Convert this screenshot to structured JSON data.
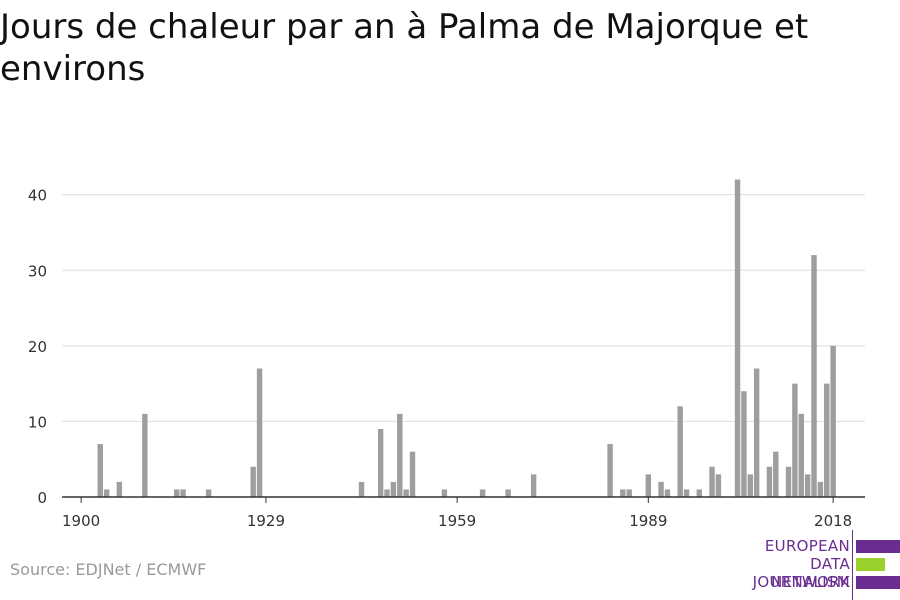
{
  "title": "Jours de chaleur par an à Palma de Majorque et environs",
  "source": "Source: EDJNet / ECMWF",
  "logo": {
    "lines": [
      "EUROPEAN",
      "DATA JOURNALISM",
      "NETWORK"
    ],
    "purple": "#6a2c91",
    "green": "#9bd12d"
  },
  "colors": {
    "bar": "#9e9e9e",
    "grid": "#dddddd",
    "axis": "#333333"
  },
  "chart_data": {
    "type": "bar",
    "title": "Jours de chaleur par an à Palma de Majorque et environs",
    "xlabel": "",
    "ylabel": "",
    "xlim": [
      1897,
      2023
    ],
    "ylim": [
      0,
      43
    ],
    "x_ticks": [
      1900,
      1929,
      1959,
      1989,
      2018
    ],
    "y_ticks": [
      0,
      10,
      20,
      30,
      40
    ],
    "grid": "horizontal",
    "points": [
      {
        "x": 1903,
        "y": 7
      },
      {
        "x": 1904,
        "y": 1
      },
      {
        "x": 1906,
        "y": 2
      },
      {
        "x": 1910,
        "y": 11
      },
      {
        "x": 1915,
        "y": 1
      },
      {
        "x": 1916,
        "y": 1
      },
      {
        "x": 1920,
        "y": 1
      },
      {
        "x": 1927,
        "y": 4
      },
      {
        "x": 1928,
        "y": 17
      },
      {
        "x": 1944,
        "y": 2
      },
      {
        "x": 1947,
        "y": 9
      },
      {
        "x": 1948,
        "y": 1
      },
      {
        "x": 1949,
        "y": 2
      },
      {
        "x": 1950,
        "y": 11
      },
      {
        "x": 1951,
        "y": 1
      },
      {
        "x": 1952,
        "y": 6
      },
      {
        "x": 1957,
        "y": 1
      },
      {
        "x": 1963,
        "y": 1
      },
      {
        "x": 1967,
        "y": 1
      },
      {
        "x": 1971,
        "y": 3
      },
      {
        "x": 1983,
        "y": 7
      },
      {
        "x": 1985,
        "y": 1
      },
      {
        "x": 1986,
        "y": 1
      },
      {
        "x": 1989,
        "y": 3
      },
      {
        "x": 1991,
        "y": 2
      },
      {
        "x": 1992,
        "y": 1
      },
      {
        "x": 1994,
        "y": 12
      },
      {
        "x": 1995,
        "y": 1
      },
      {
        "x": 1997,
        "y": 1
      },
      {
        "x": 1999,
        "y": 4
      },
      {
        "x": 2000,
        "y": 3
      },
      {
        "x": 2003,
        "y": 42
      },
      {
        "x": 2004,
        "y": 14
      },
      {
        "x": 2005,
        "y": 3
      },
      {
        "x": 2006,
        "y": 17
      },
      {
        "x": 2008,
        "y": 4
      },
      {
        "x": 2009,
        "y": 6
      },
      {
        "x": 2011,
        "y": 4
      },
      {
        "x": 2012,
        "y": 15
      },
      {
        "x": 2013,
        "y": 11
      },
      {
        "x": 2014,
        "y": 3
      },
      {
        "x": 2015,
        "y": 32
      },
      {
        "x": 2016,
        "y": 2
      },
      {
        "x": 2017,
        "y": 15
      },
      {
        "x": 2018,
        "y": 20
      }
    ]
  }
}
